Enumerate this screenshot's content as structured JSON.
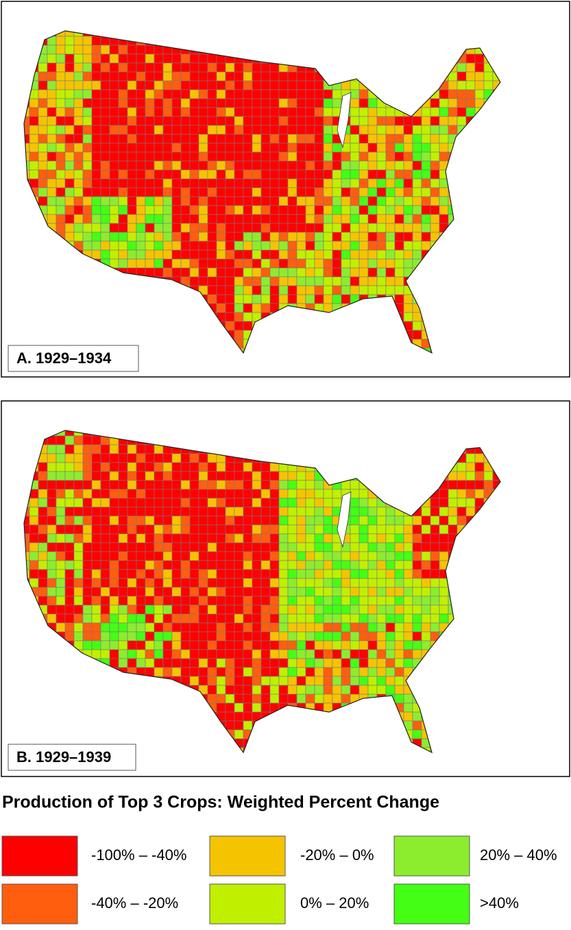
{
  "panels": [
    {
      "label": "A. 1929–1934"
    },
    {
      "label": "B. 1929–1939"
    }
  ],
  "legend": {
    "title": "Production of Top 3 Crops: Weighted Percent Change",
    "items": [
      {
        "label": "-100% – -40%",
        "color": "#ff0000"
      },
      {
        "label": "-40% – -20%",
        "color": "#ff5e0e"
      },
      {
        "label": "-20% – 0%",
        "color": "#f5c400"
      },
      {
        "label": "0% – 20%",
        "color": "#c0f000"
      },
      {
        "label": "20% – 40%",
        "color": "#8ced2e"
      },
      {
        "label": ">40%",
        "color": "#44ff14"
      }
    ]
  }
}
